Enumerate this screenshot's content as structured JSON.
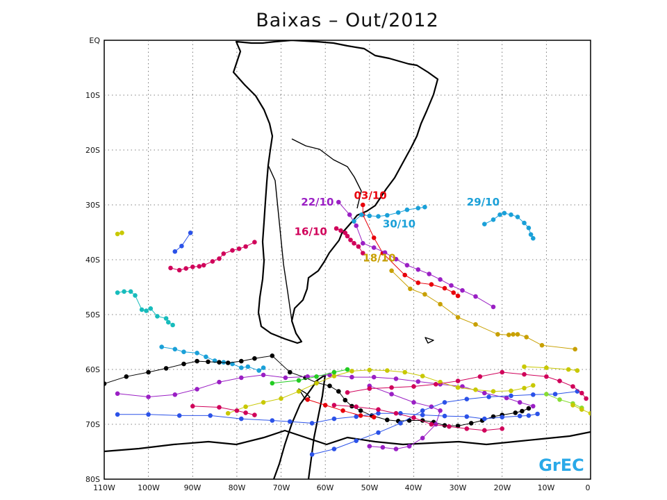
{
  "title": "Baixas – Out/2012",
  "logo": "GrEC",
  "map": {
    "lon_range": [
      -110,
      0
    ],
    "lat_range": [
      -80,
      0
    ],
    "y_ticks": [
      "EQ",
      "10S",
      "20S",
      "30S",
      "40S",
      "50S",
      "60S",
      "70S",
      "80S"
    ],
    "x_ticks": [
      "110W",
      "100W",
      "90W",
      "80W",
      "70W",
      "60W",
      "50W",
      "40W",
      "30W",
      "20W",
      "10W",
      "0"
    ],
    "grid": true,
    "grid_style": "dotted",
    "coastline_color": "#000000"
  },
  "labels": [
    {
      "text": "03/10",
      "color": "#e8000b",
      "lon": -53.5,
      "lat": -28.9
    },
    {
      "text": "22/10",
      "color": "#9a1fc4",
      "lon": -65.5,
      "lat": -30.1
    },
    {
      "text": "16/10",
      "color": "#d0005a",
      "lon": -67,
      "lat": -35.5
    },
    {
      "text": "30/10",
      "color": "#1aa0d8",
      "lon": -47,
      "lat": -34.1
    },
    {
      "text": "29/10",
      "color": "#1aa0d8",
      "lon": -28,
      "lat": -30.1
    },
    {
      "text": "18/10",
      "color": "#c8a000",
      "lon": -51.5,
      "lat": -40.3
    }
  ],
  "tracks": [
    {
      "color": "#e8000b",
      "points": [
        [
          -51.5,
          -30
        ],
        [
          -51.5,
          -31.8
        ],
        [
          -49,
          -36
        ],
        [
          -47,
          -38.8
        ],
        [
          -42,
          -42.8
        ],
        [
          -39,
          -44.2
        ],
        [
          -36,
          -44.5
        ],
        [
          -33,
          -45.2
        ],
        [
          -31,
          -46
        ],
        [
          -30,
          -46.6
        ]
      ]
    },
    {
      "color": "#9a1fc4",
      "points": [
        [
          -57,
          -29.5
        ],
        [
          -54.5,
          -31.8
        ],
        [
          -53,
          -33.8
        ],
        [
          -51.5,
          -37
        ],
        [
          -49,
          -37.8
        ],
        [
          -46.5,
          -38.7
        ],
        [
          -44,
          -39.9
        ],
        [
          -41.5,
          -41
        ],
        [
          -39,
          -41.8
        ],
        [
          -36.5,
          -42.6
        ],
        [
          -34,
          -43.6
        ],
        [
          -31.5,
          -44.7
        ],
        [
          -29,
          -45.6
        ],
        [
          -26,
          -46.7
        ],
        [
          -22,
          -48.6
        ]
      ]
    },
    {
      "color": "#d0005a",
      "points": [
        [
          -57.5,
          -34.3
        ],
        [
          -56.5,
          -34.7
        ],
        [
          -55.5,
          -35.1
        ],
        [
          -55,
          -35.7
        ],
        [
          -54.3,
          -36.4
        ],
        [
          -53.5,
          -37
        ],
        [
          -52.5,
          -37.6
        ],
        [
          -51.5,
          -38.8
        ]
      ]
    },
    {
      "color": "#1aa0d8",
      "points": [
        [
          -53.5,
          -33
        ],
        [
          -51.8,
          -31.8
        ],
        [
          -50,
          -32
        ],
        [
          -48,
          -32.1
        ],
        [
          -46,
          -31.9
        ],
        [
          -43.5,
          -31.4
        ],
        [
          -41.5,
          -30.9
        ],
        [
          -39,
          -30.6
        ],
        [
          -37.5,
          -30.4
        ]
      ]
    },
    {
      "color": "#1aa0d8",
      "points": [
        [
          -24,
          -33.5
        ],
        [
          -22,
          -32.7
        ],
        [
          -20.5,
          -31.8
        ],
        [
          -19.5,
          -31.5
        ],
        [
          -18,
          -31.8
        ],
        [
          -16.5,
          -32.2
        ],
        [
          -15,
          -33.3
        ],
        [
          -14,
          -34.2
        ],
        [
          -13.5,
          -35.4
        ],
        [
          -13,
          -36.1
        ]
      ]
    },
    {
      "color": "#c8a000",
      "points": [
        [
          -45,
          -42
        ],
        [
          -40.8,
          -45.3
        ],
        [
          -37.5,
          -46.3
        ],
        [
          -34,
          -48.1
        ],
        [
          -30,
          -50.5
        ],
        [
          -26,
          -51.8
        ],
        [
          -21,
          -53.6
        ],
        [
          -18.5,
          -53.7
        ],
        [
          -17.5,
          -53.6
        ],
        [
          -16.5,
          -53.6
        ],
        [
          -14.5,
          -54.1
        ],
        [
          -11,
          -55.6
        ],
        [
          -3.5,
          -56.3
        ]
      ]
    },
    {
      "color": "#d0005a",
      "points": [
        [
          -95,
          -41.5
        ],
        [
          -93,
          -41.9
        ],
        [
          -91.5,
          -41.6
        ],
        [
          -90,
          -41.3
        ],
        [
          -88.5,
          -41.2
        ],
        [
          -87.5,
          -41
        ],
        [
          -85.5,
          -40.3
        ],
        [
          -84,
          -39.8
        ],
        [
          -83,
          -38.9
        ],
        [
          -81,
          -38.3
        ],
        [
          -79.5,
          -38
        ],
        [
          -78,
          -37.6
        ],
        [
          -76,
          -36.8
        ]
      ]
    },
    {
      "color": "#2b52e8",
      "points": [
        [
          -94,
          -38.5
        ],
        [
          -92.5,
          -37.5
        ],
        [
          -90.5,
          -35.1
        ]
      ]
    },
    {
      "color": "#c8c800",
      "points": [
        [
          -107,
          -35.3
        ],
        [
          -106,
          -35.1
        ]
      ]
    },
    {
      "color": "#17bcbc",
      "points": [
        [
          -107,
          -46
        ],
        [
          -105.5,
          -45.8
        ],
        [
          -104,
          -45.8
        ],
        [
          -103,
          -46.5
        ],
        [
          -101.5,
          -49.1
        ],
        [
          -100.5,
          -49.3
        ],
        [
          -99.5,
          -48.9
        ],
        [
          -98,
          -50.3
        ],
        [
          -96,
          -50.7
        ],
        [
          -95.5,
          -51.4
        ],
        [
          -94.5,
          -51.9
        ]
      ]
    },
    {
      "color": "#1aa0d8",
      "points": [
        [
          -97,
          -55.9
        ],
        [
          -94,
          -56.3
        ],
        [
          -92,
          -56.8
        ],
        [
          -89,
          -57
        ],
        [
          -87,
          -57.7
        ],
        [
          -85,
          -58.4
        ],
        [
          -83,
          -58.7
        ],
        [
          -81,
          -59
        ],
        [
          -79,
          -59.7
        ],
        [
          -77.5,
          -59.5
        ],
        [
          -75,
          -60.2
        ],
        [
          -74,
          -59.7
        ]
      ]
    },
    {
      "color": "#000000",
      "points": [
        [
          -110,
          -62.6
        ],
        [
          -105,
          -61.3
        ],
        [
          -100,
          -60.5
        ],
        [
          -96,
          -59.8
        ],
        [
          -92,
          -59
        ],
        [
          -89,
          -58.5
        ],
        [
          -86.5,
          -58.6
        ],
        [
          -84,
          -58.7
        ],
        [
          -82,
          -58.8
        ],
        [
          -79,
          -58.5
        ],
        [
          -76,
          -58
        ],
        [
          -72,
          -57.5
        ],
        [
          -68,
          -60.5
        ],
        [
          -64.5,
          -61.5
        ],
        [
          -62,
          -62.4
        ],
        [
          -59,
          -63
        ],
        [
          -57,
          -64
        ],
        [
          -55.5,
          -65.6
        ],
        [
          -54,
          -66.7
        ],
        [
          -52,
          -67.5
        ],
        [
          -49.5,
          -68.4
        ],
        [
          -46,
          -69.2
        ],
        [
          -43.5,
          -69.4
        ],
        [
          -41,
          -69.3
        ],
        [
          -38,
          -69.3
        ],
        [
          -35.5,
          -69.6
        ],
        [
          -33,
          -70.2
        ],
        [
          -30,
          -70.3
        ],
        [
          -27,
          -69.8
        ],
        [
          -24.5,
          -69.3
        ],
        [
          -22,
          -68.6
        ],
        [
          -20,
          -68.3
        ],
        [
          -17,
          -67.9
        ],
        [
          -15.5,
          -67.6
        ],
        [
          -14,
          -67.1
        ]
      ]
    },
    {
      "color": "#9a1fc4",
      "points": [
        [
          -107,
          -64.4
        ],
        [
          -100,
          -65
        ],
        [
          -94,
          -64.6
        ],
        [
          -89,
          -63.6
        ],
        [
          -84,
          -62.3
        ],
        [
          -79,
          -61.5
        ],
        [
          -74,
          -61
        ],
        [
          -69,
          -61.5
        ],
        [
          -64,
          -61.3
        ],
        [
          -59,
          -61
        ],
        [
          -54,
          -61.4
        ],
        [
          -49,
          -61.4
        ],
        [
          -44,
          -61.7
        ],
        [
          -39,
          -62.2
        ],
        [
          -34,
          -62.7
        ],
        [
          -29,
          -63.1
        ],
        [
          -24,
          -64.3
        ],
        [
          -19,
          -65.2
        ],
        [
          -16,
          -66
        ],
        [
          -13,
          -66.7
        ]
      ]
    },
    {
      "color": "#9a1fc4",
      "points": [
        [
          -50,
          -63
        ],
        [
          -45,
          -64.5
        ],
        [
          -40,
          -66
        ],
        [
          -36,
          -66.8
        ],
        [
          -34,
          -67.5
        ],
        [
          -35,
          -70
        ],
        [
          -38,
          -72.5
        ],
        [
          -41,
          -74
        ],
        [
          -44,
          -74.5
        ],
        [
          -47,
          -74.2
        ],
        [
          -50,
          -74
        ]
      ]
    },
    {
      "color": "#2b52e8",
      "points": [
        [
          -107,
          -68.2
        ],
        [
          -100,
          -68.2
        ],
        [
          -93,
          -68.4
        ],
        [
          -86,
          -68.4
        ],
        [
          -79,
          -69
        ],
        [
          -72,
          -69.3
        ],
        [
          -68,
          -69.5
        ],
        [
          -63,
          -69.8
        ],
        [
          -58,
          -69
        ],
        [
          -53,
          -68.6
        ],
        [
          -48,
          -68
        ],
        [
          -43,
          -68
        ],
        [
          -38,
          -68.3
        ],
        [
          -33,
          -68.5
        ],
        [
          -28,
          -68.6
        ],
        [
          -24,
          -69
        ],
        [
          -20,
          -68.7
        ],
        [
          -16,
          -68.5
        ],
        [
          -14,
          -68.4
        ],
        [
          -12,
          -68.1
        ]
      ]
    },
    {
      "color": "#2b52e8",
      "points": [
        [
          -63,
          -75.5
        ],
        [
          -58,
          -74.5
        ],
        [
          -53,
          -73
        ],
        [
          -48,
          -71.5
        ],
        [
          -43,
          -69.8
        ],
        [
          -38,
          -67.5
        ],
        [
          -33,
          -66
        ],
        [
          -28,
          -65.4
        ],
        [
          -23,
          -65
        ],
        [
          -18,
          -64.8
        ],
        [
          -13,
          -64.6
        ],
        [
          -8,
          -64.5
        ],
        [
          -3,
          -64
        ]
      ]
    },
    {
      "color": "#c8c800",
      "points": [
        [
          -82,
          -68
        ],
        [
          -78,
          -66.8
        ],
        [
          -74,
          -66
        ],
        [
          -70,
          -65.3
        ],
        [
          -66,
          -64
        ],
        [
          -62,
          -62.5
        ],
        [
          -58,
          -61.2
        ],
        [
          -54,
          -60.3
        ],
        [
          -50,
          -60.1
        ],
        [
          -46,
          -60.2
        ],
        [
          -42,
          -60.5
        ],
        [
          -38,
          -61.2
        ],
        [
          -34,
          -62.3
        ],
        [
          -30,
          -63.3
        ],
        [
          -26,
          -63.7
        ],
        [
          -22,
          -64
        ],
        [
          -18,
          -63.9
        ],
        [
          -15,
          -63.4
        ],
        [
          -13,
          -62.9
        ]
      ]
    },
    {
      "color": "#c8c800",
      "points": [
        [
          -15,
          -59.5
        ],
        [
          -10,
          -59.7
        ],
        [
          -5,
          -60
        ],
        [
          -3,
          -60.2
        ]
      ]
    },
    {
      "color": "#d0005a",
      "points": [
        [
          -90,
          -66.7
        ],
        [
          -84,
          -66.9
        ],
        [
          -80,
          -67.5
        ],
        [
          -78,
          -67.9
        ],
        [
          -76,
          -68.3
        ]
      ]
    },
    {
      "color": "#d0005a",
      "points": [
        [
          -58,
          -66.5
        ],
        [
          -53,
          -66.8
        ],
        [
          -48,
          -67.3
        ],
        [
          -44,
          -68
        ],
        [
          -40,
          -68.8
        ],
        [
          -36,
          -70
        ],
        [
          -32,
          -70.4
        ],
        [
          -28,
          -70.8
        ],
        [
          -24,
          -71.1
        ],
        [
          -20,
          -70.8
        ]
      ]
    },
    {
      "color": "#d0005a",
      "points": [
        [
          -55,
          -64.2
        ],
        [
          -50,
          -63.5
        ],
        [
          -45,
          -63.3
        ],
        [
          -40,
          -63.1
        ],
        [
          -35,
          -62.7
        ],
        [
          -30,
          -62.1
        ],
        [
          -25,
          -61.3
        ],
        [
          -20,
          -60.5
        ],
        [
          -15,
          -60.9
        ],
        [
          -10,
          -61.3
        ],
        [
          -7,
          -62.1
        ],
        [
          -4,
          -63.1
        ],
        [
          -2,
          -64.3
        ],
        [
          -1,
          -65.3
        ]
      ]
    },
    {
      "color": "#e8000b",
      "points": [
        [
          -64,
          -65.5
        ],
        [
          -60,
          -66.5
        ],
        [
          -56,
          -67.5
        ],
        [
          -52,
          -68.4
        ],
        [
          -49,
          -68.7
        ]
      ]
    },
    {
      "color": "#22cc22",
      "points": [
        [
          -72,
          -62.5
        ],
        [
          -66,
          -62
        ],
        [
          -62,
          -61.3
        ],
        [
          -58,
          -60.5
        ],
        [
          -55,
          -60
        ]
      ]
    },
    {
      "color": "#88dd33",
      "points": [
        [
          -10,
          -64.5
        ],
        [
          -7,
          -65.5
        ],
        [
          -4,
          -66.2
        ],
        [
          -2,
          -67
        ]
      ]
    },
    {
      "color": "#c8c800",
      "points": [
        [
          -4,
          -66.5
        ],
        [
          -2,
          -67.3
        ],
        [
          0,
          -68
        ]
      ]
    }
  ]
}
